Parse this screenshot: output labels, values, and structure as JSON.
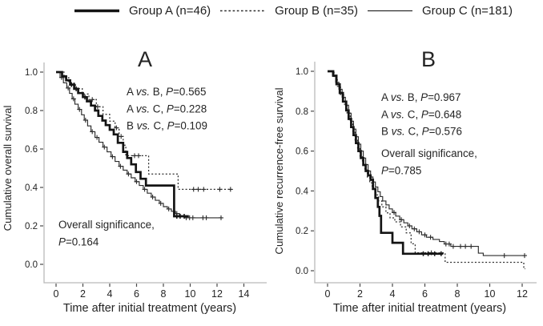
{
  "figure": {
    "background": "#ffffff"
  },
  "colors": {
    "curve": "#1c1c1c",
    "axis_line": "#b9b9b9",
    "tick": "#4a4a4a",
    "text": "#242424"
  },
  "legend": {
    "items": [
      {
        "label": "Group A (n=46)",
        "line_style": "thick"
      },
      {
        "label": "Group B (n=35)",
        "line_style": "dotted"
      },
      {
        "label": "Group C (n=181)",
        "line_style": "thin"
      }
    ]
  },
  "chart_data": [
    {
      "type": "line",
      "subtype": "kaplan-meier-step",
      "title": "A",
      "xlabel": "Time after initial treatment (years)",
      "ylabel": "Cumulative overall survival",
      "xlim": [
        0,
        15
      ],
      "ylim": [
        0.0,
        1.0
      ],
      "xticks": [
        0,
        2,
        4,
        6,
        8,
        10,
        12,
        14
      ],
      "yticks": [
        "0.0",
        "0.2",
        "0.4",
        "0.6",
        "0.8",
        "1.0"
      ],
      "grid": false,
      "annotations": {
        "comparisons": [
          "A vs. B, P=0.565",
          "A vs. C, P=0.228",
          "B vs. C, P=0.109"
        ],
        "overall": [
          "Overall significance,",
          "P=0.164"
        ]
      },
      "series": [
        {
          "name": "Group A",
          "style": "thick",
          "end_time": 9.9,
          "points": [
            [
              0,
              1.0
            ],
            [
              0.45,
              0.978
            ],
            [
              0.75,
              0.957
            ],
            [
              1.05,
              0.935
            ],
            [
              1.35,
              0.913
            ],
            [
              1.65,
              0.891
            ],
            [
              2.0,
              0.87
            ],
            [
              2.3,
              0.848
            ],
            [
              2.6,
              0.826
            ],
            [
              2.9,
              0.8
            ],
            [
              3.15,
              0.772
            ],
            [
              3.45,
              0.748
            ],
            [
              3.7,
              0.724
            ],
            [
              4.0,
              0.7
            ],
            [
              4.3,
              0.676
            ],
            [
              4.6,
              0.632
            ],
            [
              5.0,
              0.585
            ],
            [
              5.3,
              0.553
            ],
            [
              5.6,
              0.52
            ],
            [
              5.95,
              0.48
            ],
            [
              6.3,
              0.445
            ],
            [
              6.7,
              0.41
            ],
            [
              8.8,
              0.25
            ]
          ],
          "censors": [
            [
              1.15,
              0.935
            ],
            [
              1.5,
              0.913
            ],
            [
              2.15,
              0.87
            ],
            [
              9.0,
              0.25
            ],
            [
              9.25,
              0.25
            ],
            [
              9.55,
              0.25
            ]
          ]
        },
        {
          "name": "Group B",
          "style": "dotted",
          "end_time": 13.1,
          "points": [
            [
              0,
              1.0
            ],
            [
              0.6,
              0.971
            ],
            [
              0.95,
              0.943
            ],
            [
              1.45,
              0.914
            ],
            [
              1.95,
              0.886
            ],
            [
              2.45,
              0.857
            ],
            [
              3.0,
              0.82
            ],
            [
              3.5,
              0.78
            ],
            [
              4.0,
              0.745
            ],
            [
              4.4,
              0.71
            ],
            [
              4.7,
              0.665
            ],
            [
              5.0,
              0.62
            ],
            [
              5.2,
              0.565
            ],
            [
              6.9,
              0.47
            ],
            [
              9.1,
              0.39
            ]
          ],
          "censors": [
            [
              2.7,
              0.857
            ],
            [
              3.1,
              0.82
            ],
            [
              4.5,
              0.71
            ],
            [
              4.85,
              0.665
            ],
            [
              5.85,
              0.565
            ],
            [
              6.15,
              0.565
            ],
            [
              10.25,
              0.39
            ],
            [
              10.6,
              0.39
            ],
            [
              11.0,
              0.39
            ],
            [
              12.2,
              0.39
            ],
            [
              13.0,
              0.39
            ]
          ]
        },
        {
          "name": "Group C",
          "style": "thin",
          "end_time": 12.35,
          "points": [
            [
              0,
              1.0
            ],
            [
              0.3,
              0.972
            ],
            [
              0.55,
              0.944
            ],
            [
              0.8,
              0.917
            ],
            [
              1.0,
              0.889
            ],
            [
              1.2,
              0.861
            ],
            [
              1.4,
              0.833
            ],
            [
              1.65,
              0.806
            ],
            [
              1.9,
              0.778
            ],
            [
              2.1,
              0.75
            ],
            [
              2.35,
              0.72
            ],
            [
              2.6,
              0.69
            ],
            [
              2.9,
              0.66
            ],
            [
              3.2,
              0.635
            ],
            [
              3.5,
              0.61
            ],
            [
              3.8,
              0.585
            ],
            [
              4.1,
              0.56
            ],
            [
              4.4,
              0.535
            ],
            [
              4.7,
              0.51
            ],
            [
              5.0,
              0.49
            ],
            [
              5.3,
              0.47
            ],
            [
              5.6,
              0.45
            ],
            [
              5.9,
              0.43
            ],
            [
              6.2,
              0.41
            ],
            [
              6.5,
              0.39
            ],
            [
              6.8,
              0.37
            ],
            [
              7.1,
              0.35
            ],
            [
              7.4,
              0.333
            ],
            [
              7.7,
              0.317
            ],
            [
              8.0,
              0.3
            ],
            [
              8.3,
              0.288
            ],
            [
              8.6,
              0.276
            ],
            [
              8.9,
              0.264
            ],
            [
              9.2,
              0.252
            ],
            [
              9.55,
              0.242
            ]
          ],
          "censors": [
            [
              0.42,
              0.972
            ],
            [
              0.9,
              0.917
            ],
            [
              1.3,
              0.861
            ],
            [
              1.75,
              0.806
            ],
            [
              2.2,
              0.75
            ],
            [
              2.7,
              0.69
            ],
            [
              3.05,
              0.66
            ],
            [
              3.6,
              0.61
            ],
            [
              4.2,
              0.56
            ],
            [
              4.8,
              0.51
            ],
            [
              5.4,
              0.47
            ],
            [
              6.0,
              0.43
            ],
            [
              6.6,
              0.39
            ],
            [
              7.2,
              0.35
            ],
            [
              7.8,
              0.317
            ],
            [
              8.4,
              0.288
            ],
            [
              9.0,
              0.264
            ],
            [
              9.7,
              0.242
            ],
            [
              9.95,
              0.242
            ],
            [
              10.2,
              0.242
            ],
            [
              10.95,
              0.242
            ],
            [
              11.2,
              0.242
            ],
            [
              12.3,
              0.242
            ]
          ]
        }
      ]
    },
    {
      "type": "line",
      "subtype": "kaplan-meier-step",
      "title": "B",
      "xlabel": "Time after initial treatment (years)",
      "ylabel": "Cumulative recurrence-free survival",
      "xlim": [
        0,
        13
      ],
      "ylim": [
        0.0,
        1.0
      ],
      "xticks": [
        0,
        2,
        4,
        6,
        8,
        10,
        12
      ],
      "yticks": [
        "0.0",
        "0.2",
        "0.4",
        "0.6",
        "0.8",
        "1.0"
      ],
      "grid": false,
      "annotations": {
        "comparisons": [
          "A vs. B, P=0.967",
          "A vs. C, P=0.648",
          "B vs. C, P=0.576"
        ],
        "overall": [
          "Overall significance,",
          "P=0.785"
        ]
      },
      "series": [
        {
          "name": "Group A",
          "style": "thick",
          "end_time": 7.1,
          "points": [
            [
              0,
              1.0
            ],
            [
              0.35,
              0.978
            ],
            [
              0.55,
              0.935
            ],
            [
              0.75,
              0.891
            ],
            [
              0.95,
              0.848
            ],
            [
              1.15,
              0.804
            ],
            [
              1.3,
              0.761
            ],
            [
              1.45,
              0.72
            ],
            [
              1.6,
              0.68
            ],
            [
              1.75,
              0.64
            ],
            [
              1.9,
              0.6
            ],
            [
              2.05,
              0.565
            ],
            [
              2.2,
              0.53
            ],
            [
              2.35,
              0.5
            ],
            [
              2.5,
              0.478
            ],
            [
              2.65,
              0.456
            ],
            [
              2.8,
              0.41
            ],
            [
              2.95,
              0.365
            ],
            [
              3.1,
              0.32
            ],
            [
              3.2,
              0.275
            ],
            [
              3.3,
              0.19
            ],
            [
              4.0,
              0.14
            ],
            [
              4.65,
              0.085
            ]
          ],
          "censors": [
            [
              5.9,
              0.085
            ],
            [
              6.2,
              0.085
            ],
            [
              6.6,
              0.085
            ],
            [
              7.0,
              0.085
            ]
          ]
        },
        {
          "name": "Group B",
          "style": "dotted",
          "end_time": 12.2,
          "points": [
            [
              0,
              1.0
            ],
            [
              0.4,
              0.97
            ],
            [
              0.6,
              0.925
            ],
            [
              0.8,
              0.88
            ],
            [
              1.0,
              0.835
            ],
            [
              1.2,
              0.79
            ],
            [
              1.4,
              0.745
            ],
            [
              1.55,
              0.7
            ],
            [
              1.7,
              0.655
            ],
            [
              1.85,
              0.615
            ],
            [
              2.0,
              0.575
            ],
            [
              2.15,
              0.54
            ],
            [
              2.3,
              0.505
            ],
            [
              2.45,
              0.47
            ],
            [
              2.6,
              0.44
            ],
            [
              2.75,
              0.41
            ],
            [
              2.95,
              0.38
            ],
            [
              3.15,
              0.35
            ],
            [
              3.35,
              0.32
            ],
            [
              3.6,
              0.29
            ],
            [
              3.85,
              0.265
            ],
            [
              4.15,
              0.245
            ],
            [
              4.5,
              0.22
            ],
            [
              4.85,
              0.19
            ],
            [
              5.15,
              0.135
            ],
            [
              5.4,
              0.09
            ],
            [
              7.25,
              0.042
            ],
            [
              12.1,
              0.01
            ]
          ],
          "censors": [
            [
              6.4,
              0.09
            ]
          ]
        },
        {
          "name": "Group C",
          "style": "thin",
          "end_time": 12.2,
          "points": [
            [
              0,
              1.0
            ],
            [
              0.3,
              0.976
            ],
            [
              0.5,
              0.945
            ],
            [
              0.7,
              0.91
            ],
            [
              0.9,
              0.87
            ],
            [
              1.1,
              0.83
            ],
            [
              1.3,
              0.79
            ],
            [
              1.45,
              0.75
            ],
            [
              1.6,
              0.71
            ],
            [
              1.75,
              0.672
            ],
            [
              1.9,
              0.635
            ],
            [
              2.05,
              0.6
            ],
            [
              2.2,
              0.565
            ],
            [
              2.35,
              0.532
            ],
            [
              2.5,
              0.5
            ],
            [
              2.65,
              0.47
            ],
            [
              2.8,
              0.445
            ],
            [
              2.95,
              0.42
            ],
            [
              3.1,
              0.396
            ],
            [
              3.25,
              0.372
            ],
            [
              3.4,
              0.35
            ],
            [
              3.6,
              0.33
            ],
            [
              3.8,
              0.31
            ],
            [
              4.0,
              0.292
            ],
            [
              4.2,
              0.274
            ],
            [
              4.45,
              0.256
            ],
            [
              4.7,
              0.24
            ],
            [
              4.95,
              0.225
            ],
            [
              5.2,
              0.21
            ],
            [
              5.5,
              0.195
            ],
            [
              5.8,
              0.18
            ],
            [
              6.1,
              0.168
            ],
            [
              6.5,
              0.157
            ],
            [
              6.9,
              0.146
            ],
            [
              7.2,
              0.134
            ],
            [
              7.6,
              0.122
            ],
            [
              9.3,
              0.088
            ],
            [
              9.6,
              0.076
            ]
          ],
          "censors": [
            [
              4.1,
              0.292
            ],
            [
              4.55,
              0.256
            ],
            [
              5.05,
              0.225
            ],
            [
              5.35,
              0.21
            ],
            [
              5.65,
              0.195
            ],
            [
              6.0,
              0.18
            ],
            [
              6.35,
              0.168
            ],
            [
              7.3,
              0.134
            ],
            [
              7.5,
              0.134
            ],
            [
              7.75,
              0.122
            ],
            [
              8.2,
              0.122
            ],
            [
              8.5,
              0.122
            ],
            [
              8.85,
              0.122
            ],
            [
              10.9,
              0.076
            ],
            [
              12.15,
              0.076
            ]
          ]
        }
      ]
    }
  ]
}
